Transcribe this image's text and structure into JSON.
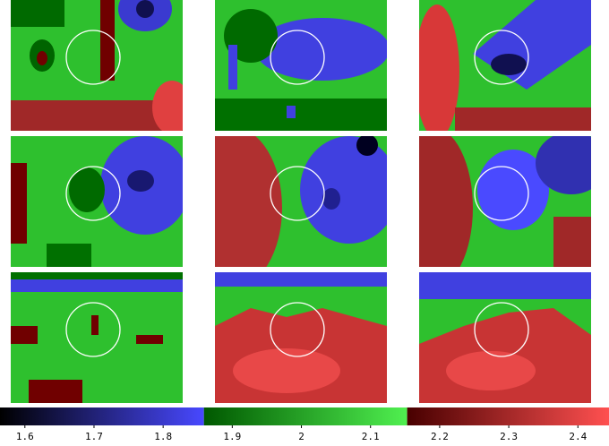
{
  "chart_data": {
    "type": "colorbar",
    "xlim": [
      1.564,
      2.445
    ],
    "xticks": [
      1.6,
      1.7,
      1.8,
      1.9,
      2,
      2.1,
      2.2,
      2.3,
      2.4
    ],
    "segments": [
      {
        "range": [
          1.564,
          1.859
        ],
        "colors": [
          "#000000",
          "#4848ff"
        ]
      },
      {
        "range": [
          1.859,
          2.153
        ],
        "colors": [
          "#005800",
          "#50f050"
        ]
      },
      {
        "range": [
          2.153,
          2.445
        ],
        "colors": [
          "#480000",
          "#ff5050"
        ]
      }
    ]
  }
}
